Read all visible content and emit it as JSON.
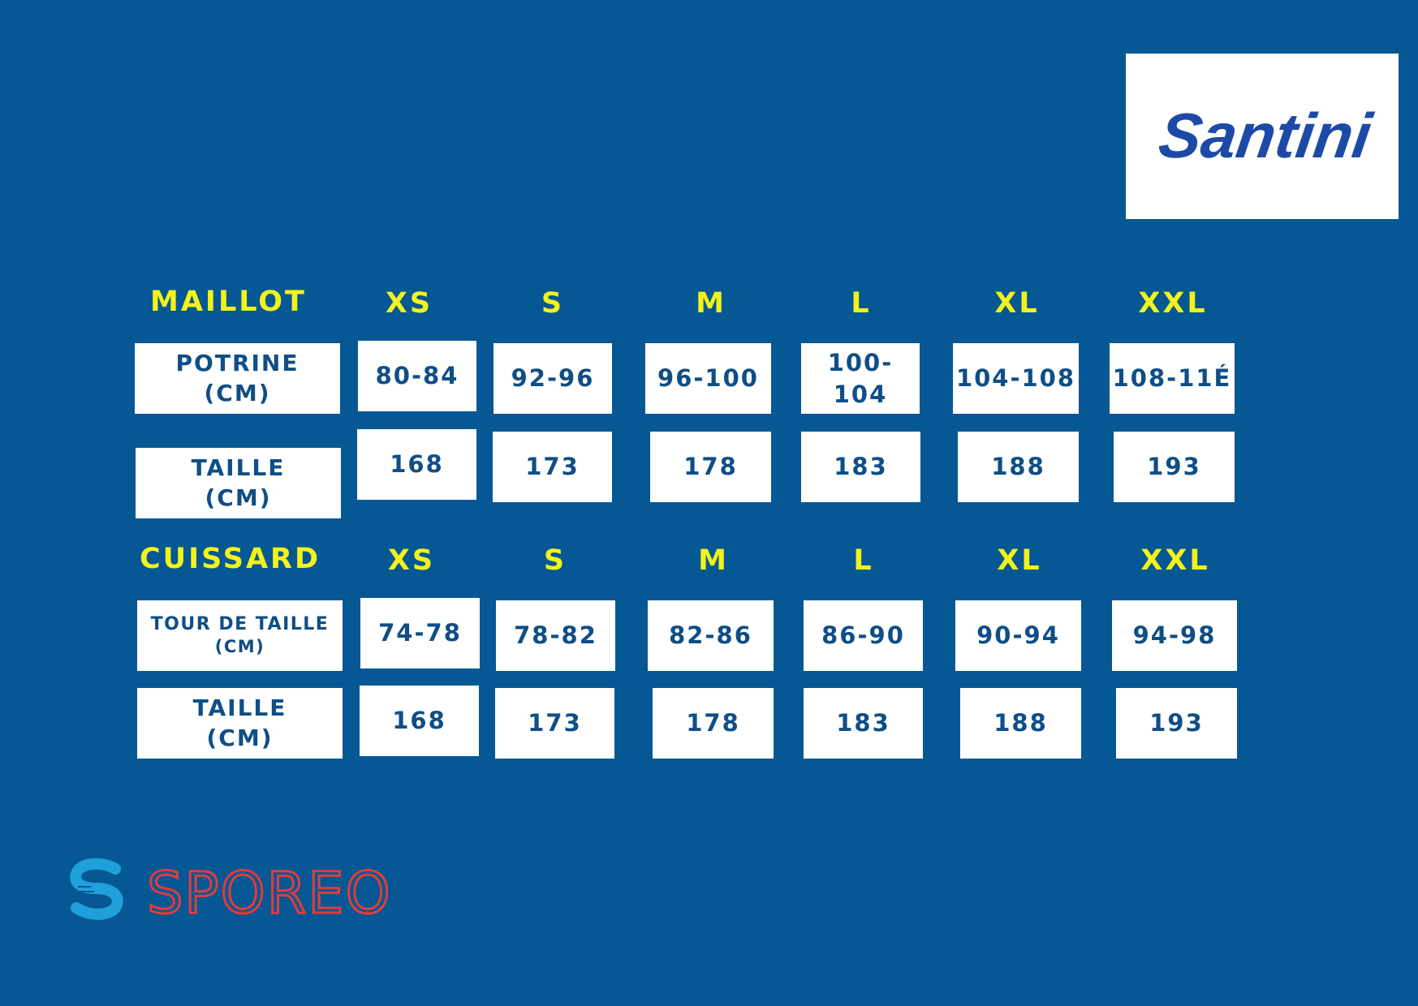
{
  "brand": {
    "name": "Santini",
    "color": "#1d4aa6"
  },
  "footer_brand": {
    "name": "SPOREO",
    "icon": "sporeo-s-logo-icon",
    "color_icon": "#1ea0db",
    "color_text": "#e23b3b"
  },
  "colors": {
    "background": "#055893",
    "header_text": "#f4f21c",
    "cell_background": "#ffffff",
    "cell_text": "#0f4e86"
  },
  "maillot": {
    "title": "MAILLOT",
    "sizes": [
      "XS",
      "S",
      "M",
      "L",
      "XL",
      "XXL"
    ],
    "rows": [
      {
        "label_line1": "POTRINE",
        "label_line2": "(CM)",
        "values": [
          "80-84",
          "92-96",
          "96-100",
          "100-104",
          "104-108",
          "108-11É"
        ]
      },
      {
        "label_line1": "TAILLE",
        "label_line2": "(CM)",
        "values": [
          "168",
          "173",
          "178",
          "183",
          "188",
          "193"
        ]
      }
    ]
  },
  "cuissard": {
    "title": "CUISSARD",
    "sizes": [
      "XS",
      "S",
      "M",
      "L",
      "XL",
      "XXL"
    ],
    "rows": [
      {
        "label_line1": "TOUR DE TAILLE",
        "label_line2": "(CM)",
        "values": [
          "74-78",
          "78-82",
          "82-86",
          "86-90",
          "90-94",
          "94-98"
        ]
      },
      {
        "label_line1": "TAILLE",
        "label_line2": "(CM)",
        "values": [
          "168",
          "173",
          "178",
          "183",
          "188",
          "193"
        ]
      }
    ]
  }
}
